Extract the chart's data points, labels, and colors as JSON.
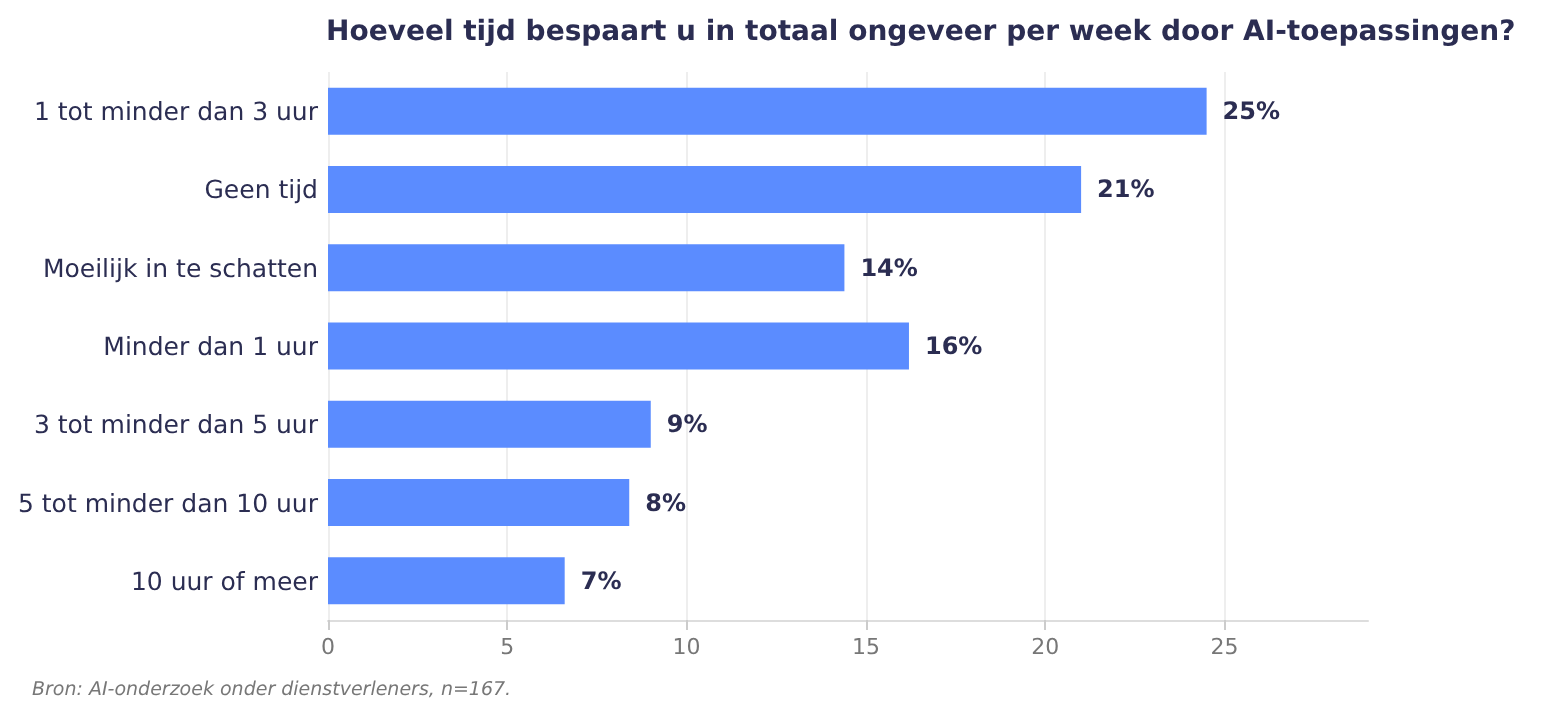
{
  "chart_data": {
    "type": "bar",
    "orientation": "horizontal",
    "title": "Hoeveel tijd bespaart u in totaal ongeveer per week door AI-toepassingen?",
    "categories": [
      "1 tot minder dan 3 uur",
      "Geen tijd",
      "Moeilijk in te schatten",
      "Minder dan 1 uur",
      "3 tot minder dan 5 uur",
      "5 tot minder dan 10 uur",
      "10 uur of meer"
    ],
    "values": [
      24.5,
      21,
      14.4,
      16.2,
      9,
      8.4,
      6.6
    ],
    "value_labels": [
      "25%",
      "21%",
      "14%",
      "16%",
      "9%",
      "8%",
      "7%"
    ],
    "color": "#5b8cff",
    "xlim": [
      0,
      29
    ],
    "xticks": [
      0,
      5,
      10,
      15,
      20,
      25
    ],
    "grid": "x",
    "annotations": [
      "Bron: AI-onderzoek onder dienstverleners, n=167."
    ]
  }
}
